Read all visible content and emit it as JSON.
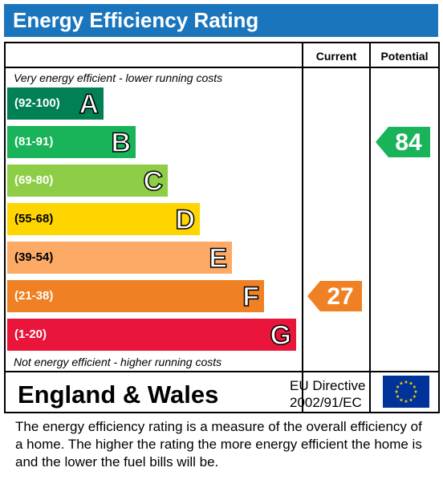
{
  "title": "Energy Efficiency Rating",
  "header": {
    "current": "Current",
    "potential": "Potential"
  },
  "captions": {
    "top": "Very energy efficient - lower running costs",
    "bottom": "Not energy efficient - higher running costs"
  },
  "chart_data": {
    "type": "bar",
    "bands": [
      {
        "letter": "A",
        "range": "(92-100)",
        "min": 92,
        "max": 100,
        "color": "#008054"
      },
      {
        "letter": "B",
        "range": "(81-91)",
        "min": 81,
        "max": 91,
        "color": "#19b459"
      },
      {
        "letter": "C",
        "range": "(69-80)",
        "min": 69,
        "max": 80,
        "color": "#8dce46"
      },
      {
        "letter": "D",
        "range": "(55-68)",
        "min": 55,
        "max": 68,
        "color": "#ffd500"
      },
      {
        "letter": "E",
        "range": "(39-54)",
        "min": 39,
        "max": 54,
        "color": "#fcaa65"
      },
      {
        "letter": "F",
        "range": "(21-38)",
        "min": 21,
        "max": 38,
        "color": "#ef8023"
      },
      {
        "letter": "G",
        "range": "(1-20)",
        "min": 1,
        "max": 20,
        "color": "#e9153b"
      }
    ],
    "current": {
      "value": 27,
      "band": "F",
      "color": "#ef8023"
    },
    "potential": {
      "value": 84,
      "band": "B",
      "color": "#19b459"
    }
  },
  "footer": {
    "country": "England & Wales",
    "directive_line1": "EU Directive",
    "directive_line2": "2002/91/EC",
    "flag_icon": "eu-flag-icon"
  },
  "description": "The energy efficiency rating is a measure of the overall efficiency of a home.  The higher the rating the more energy efficient the home is and the lower the fuel bills will be."
}
